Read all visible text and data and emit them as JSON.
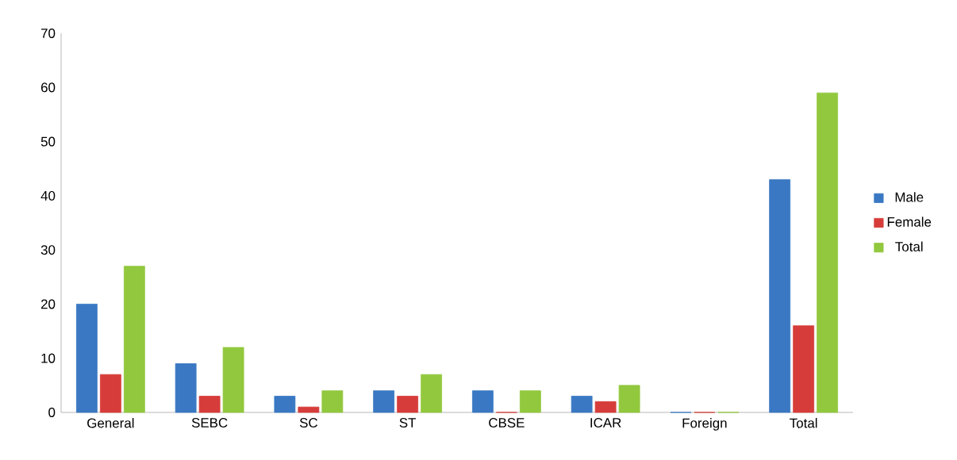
{
  "chart_data": {
    "type": "bar",
    "categories": [
      "General",
      "SEBC",
      "SC",
      "ST",
      "CBSE",
      "ICAR",
      "Foreign",
      "Total"
    ],
    "series": [
      {
        "name": "Male",
        "color": "#3a78c3",
        "values": [
          20,
          9,
          3,
          4,
          4,
          3,
          0,
          43
        ]
      },
      {
        "name": "Female",
        "color": "#d63d3a",
        "values": [
          7,
          3,
          1,
          3,
          0,
          2,
          0,
          16
        ]
      },
      {
        "name": "Total",
        "color": "#92c83e",
        "values": [
          27,
          12,
          4,
          7,
          4,
          5,
          0,
          59
        ]
      }
    ],
    "ylim": [
      0,
      70
    ],
    "yticks": [
      0,
      10,
      20,
      30,
      40,
      50,
      60,
      70
    ],
    "grid": false,
    "legend": "right"
  }
}
